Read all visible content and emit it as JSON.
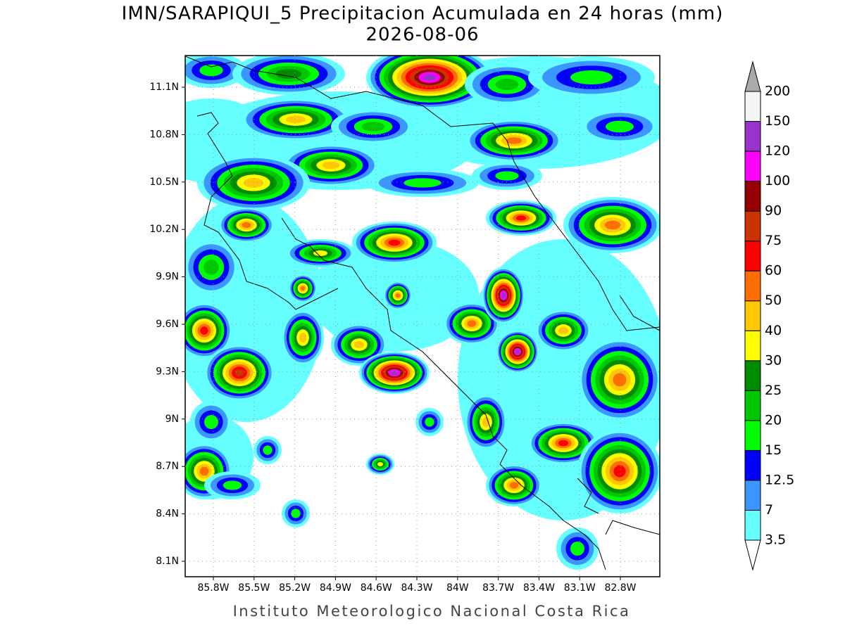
{
  "title": "IMN/SARAPIQUI_5 Precipitacion Acumulada en 24 horas (mm)",
  "subtitle": "2026-08-06",
  "footer": "Instituto Meteorologico Nacional Costa Rica",
  "map": {
    "lat_labels": [
      "11.1N",
      "10.8N",
      "10.5N",
      "10.2N",
      "9.9N",
      "9.6N",
      "9.3N",
      "9N",
      "8.7N",
      "8.4N",
      "8.1N"
    ],
    "lon_labels": [
      "85.8W",
      "85.5W",
      "85.2W",
      "84.9W",
      "84.6W",
      "84.3W",
      "84W",
      "83.7W",
      "83.4W",
      "83.1W",
      "82.8W"
    ]
  },
  "colorbar": {
    "levels": [
      "3.5",
      "7",
      "12.5",
      "15",
      "20",
      "25",
      "30",
      "40",
      "50",
      "60",
      "75",
      "90",
      "100",
      "120",
      "150",
      "200"
    ],
    "colors": [
      "#66ffff",
      "#3c96ff",
      "#0000ff",
      "#00ff00",
      "#00c800",
      "#008c00",
      "#ffff00",
      "#ffc800",
      "#ff6e00",
      "#ff0000",
      "#cc3300",
      "#960000",
      "#ff00ff",
      "#9933cc",
      "#f5f5f5"
    ],
    "under_color": "#ffffff",
    "over_color": "#aaaaaa"
  }
}
